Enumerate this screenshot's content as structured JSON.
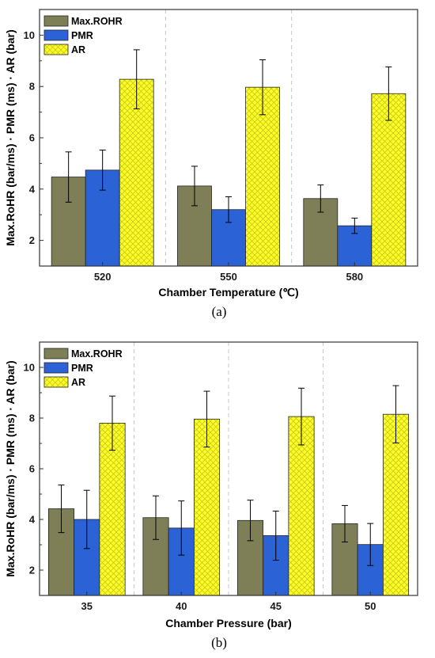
{
  "colors": {
    "Max.ROHR": "#7e7f57",
    "PMR": "#2b63d6",
    "AR": "#fdfd2a",
    "axis": "#333333",
    "grid": "#c8c8c8"
  },
  "chart_data": [
    {
      "type": "bar",
      "panel_label": "(a)",
      "xlabel": "Chamber Temperature (℃)",
      "ylabel": "Max.RoHR (bar/ms) · PMR (ms) · AR (bar)",
      "ylim": [
        1,
        11
      ],
      "yticks": [
        2,
        4,
        6,
        8,
        10
      ],
      "grid": "vertical dashed between groups",
      "legend_position": "top-left",
      "categories": [
        "520",
        "550",
        "580"
      ],
      "series": [
        {
          "name": "Max.ROHR",
          "values": [
            4.47,
            4.12,
            3.63
          ],
          "errors": [
            0.98,
            0.77,
            0.53
          ]
        },
        {
          "name": "PMR",
          "values": [
            4.74,
            3.2,
            2.57
          ],
          "errors": [
            0.78,
            0.5,
            0.3
          ]
        },
        {
          "name": "AR",
          "values": [
            8.28,
            7.97,
            7.72
          ],
          "errors": [
            1.15,
            1.07,
            1.04
          ]
        }
      ]
    },
    {
      "type": "bar",
      "panel_label": "(b)",
      "xlabel": "Chamber Pressure (bar)",
      "ylabel": "Max.RoHR (bar/ms) · PMR (ms) · AR (bar)",
      "ylim": [
        1,
        11
      ],
      "yticks": [
        2,
        4,
        6,
        8,
        10
      ],
      "grid": "vertical dashed between groups",
      "legend_position": "top-left",
      "categories": [
        "35",
        "40",
        "45",
        "50"
      ],
      "series": [
        {
          "name": "Max.ROHR",
          "values": [
            4.42,
            4.07,
            3.96,
            3.83
          ],
          "errors": [
            0.94,
            0.86,
            0.8,
            0.72
          ]
        },
        {
          "name": "PMR",
          "values": [
            4.0,
            3.66,
            3.36,
            3.01
          ],
          "errors": [
            1.15,
            1.07,
            0.97,
            0.83
          ]
        },
        {
          "name": "AR",
          "values": [
            7.8,
            7.96,
            8.06,
            8.15
          ],
          "errors": [
            1.07,
            1.1,
            1.12,
            1.13
          ]
        }
      ]
    }
  ]
}
